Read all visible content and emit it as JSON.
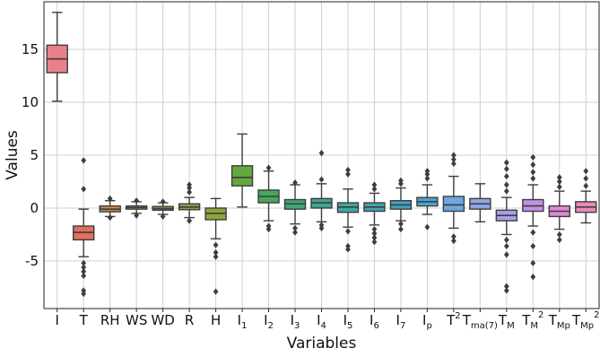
{
  "chart_data": {
    "type": "box",
    "xlabel": "Variables",
    "ylabel": "Values",
    "ylim": [
      -9.5,
      19.5
    ],
    "yticks": [
      -5,
      0,
      5,
      10,
      15
    ],
    "grid": true,
    "categories": [
      {
        "label": "I",
        "sub": "",
        "sup": "",
        "color": "#e8808a",
        "q1": 12.8,
        "med": 14.1,
        "q3": 15.4,
        "wlo": 10.1,
        "whi": 18.5,
        "fliers": []
      },
      {
        "label": "T",
        "sub": "",
        "sup": "",
        "color": "#e0705a",
        "q1": -3.0,
        "med": -2.3,
        "q3": -1.7,
        "wlo": -4.6,
        "whi": -0.1,
        "fliers": [
          4.5,
          1.8,
          -5.2,
          -5.6,
          -6.0,
          -6.4,
          -7.8,
          -8.1
        ]
      },
      {
        "label": "RH",
        "sub": "",
        "sup": "",
        "color": "#c88a4c",
        "q1": -0.35,
        "med": -0.1,
        "q3": 0.2,
        "wlo": -0.8,
        "whi": 0.7,
        "fliers": [
          0.9,
          -0.9
        ]
      },
      {
        "label": "WS",
        "sub": "",
        "sup": "",
        "color": "#b39540",
        "q1": -0.1,
        "med": 0.05,
        "q3": 0.2,
        "wlo": -0.5,
        "whi": 0.6,
        "fliers": [
          0.7,
          -0.7
        ]
      },
      {
        "label": "WD",
        "sub": "",
        "sup": "",
        "color": "#a49a3c",
        "q1": -0.2,
        "med": -0.05,
        "q3": 0.15,
        "wlo": -0.6,
        "whi": 0.5,
        "fliers": [
          0.6,
          -0.8
        ]
      },
      {
        "label": "R",
        "sub": "",
        "sup": "",
        "color": "#979d3b",
        "q1": -0.15,
        "med": 0.1,
        "q3": 0.4,
        "wlo": -0.9,
        "whi": 1.0,
        "fliers": [
          1.5,
          1.9,
          2.2,
          -1.2
        ]
      },
      {
        "label": "H",
        "sub": "",
        "sup": "",
        "color": "#8ea43b",
        "q1": -1.1,
        "med": -0.5,
        "q3": 0.0,
        "wlo": -2.9,
        "whi": 0.9,
        "fliers": [
          -3.5,
          -4.2,
          -4.6,
          -7.9
        ]
      },
      {
        "label": "I",
        "sub": "1",
        "sup": "",
        "color": "#63a83e",
        "q1": 2.1,
        "med": 2.9,
        "q3": 4.0,
        "wlo": 0.1,
        "whi": 7.0,
        "fliers": []
      },
      {
        "label": "I",
        "sub": "2",
        "sup": "",
        "color": "#46a85a",
        "q1": 0.5,
        "med": 1.1,
        "q3": 1.7,
        "wlo": -1.2,
        "whi": 3.5,
        "fliers": [
          3.8,
          -1.7,
          -2.0
        ]
      },
      {
        "label": "I",
        "sub": "3",
        "sup": "",
        "color": "#3ea77c",
        "q1": -0.1,
        "med": 0.4,
        "q3": 0.8,
        "wlo": -1.5,
        "whi": 2.2,
        "fliers": [
          2.4,
          -1.9,
          -2.3
        ]
      },
      {
        "label": "I",
        "sub": "4",
        "sup": "",
        "color": "#3ea690",
        "q1": 0.0,
        "med": 0.5,
        "q3": 0.9,
        "wlo": -1.3,
        "whi": 2.3,
        "fliers": [
          2.7,
          5.2,
          -1.6,
          -1.9
        ]
      },
      {
        "label": "I",
        "sub": "5",
        "sup": "",
        "color": "#3fa6a2",
        "q1": -0.4,
        "med": 0.1,
        "q3": 0.5,
        "wlo": -1.8,
        "whi": 1.8,
        "fliers": [
          3.2,
          3.6,
          -2.2,
          -3.6,
          -3.9
        ]
      },
      {
        "label": "I",
        "sub": "6",
        "sup": "",
        "color": "#40a5b2",
        "q1": -0.3,
        "med": 0.1,
        "q3": 0.5,
        "wlo": -1.6,
        "whi": 1.4,
        "fliers": [
          1.8,
          2.2,
          -2.0,
          -2.4,
          -2.8,
          -3.2
        ]
      },
      {
        "label": "I",
        "sub": "7",
        "sup": "",
        "color": "#43a3c3",
        "q1": -0.1,
        "med": 0.3,
        "q3": 0.7,
        "wlo": -1.2,
        "whi": 1.9,
        "fliers": [
          2.3,
          2.6,
          -1.5,
          -2.0
        ]
      },
      {
        "label": "I",
        "sub": "p",
        "sup": "",
        "color": "#4aa3d4",
        "q1": 0.2,
        "med": 0.6,
        "q3": 1.0,
        "wlo": -0.6,
        "whi": 2.2,
        "fliers": [
          2.8,
          3.2,
          3.5,
          -1.8
        ]
      },
      {
        "label": "T",
        "sub": "",
        "sup": "2",
        "color": "#6ea6e0",
        "q1": -0.3,
        "med": 0.3,
        "q3": 1.1,
        "wlo": -1.9,
        "whi": 3.0,
        "fliers": [
          4.2,
          4.6,
          5.0,
          -2.7,
          -3.1
        ]
      },
      {
        "label": "T",
        "sub": "ma(7)",
        "sup": "",
        "color": "#8ea6e6",
        "q1": -0.1,
        "med": 0.4,
        "q3": 0.9,
        "wlo": -1.3,
        "whi": 2.3,
        "fliers": []
      },
      {
        "label": "T",
        "sub": "M",
        "sup": "",
        "color": "#a89ee8",
        "q1": -1.2,
        "med": -0.7,
        "q3": -0.2,
        "wlo": -2.5,
        "whi": 1.0,
        "fliers": [
          1.6,
          2.2,
          3.0,
          3.7,
          4.3,
          -3.0,
          -3.6,
          -4.4,
          -7.4,
          -7.8
        ]
      },
      {
        "label": "T",
        "sub": "M",
        "sup": "2",
        "color": "#c491e6",
        "q1": -0.3,
        "med": 0.2,
        "q3": 0.8,
        "wlo": -1.7,
        "whi": 2.2,
        "fliers": [
          2.8,
          3.4,
          4.1,
          4.8,
          -2.3,
          -3.6,
          -5.2,
          -6.5
        ]
      },
      {
        "label": "T",
        "sub": "Mp",
        "sup": "",
        "color": "#de8ad8",
        "q1": -0.8,
        "med": -0.3,
        "q3": 0.2,
        "wlo": -2.0,
        "whi": 1.6,
        "fliers": [
          2.0,
          2.5,
          2.9,
          -2.5,
          -3.0
        ]
      },
      {
        "label": "T",
        "sub": "Mp",
        "sup": "2",
        "color": "#e88ab8",
        "q1": -0.4,
        "med": 0.1,
        "q3": 0.6,
        "wlo": -1.4,
        "whi": 1.6,
        "fliers": [
          2.1,
          2.8,
          3.5
        ]
      }
    ]
  }
}
